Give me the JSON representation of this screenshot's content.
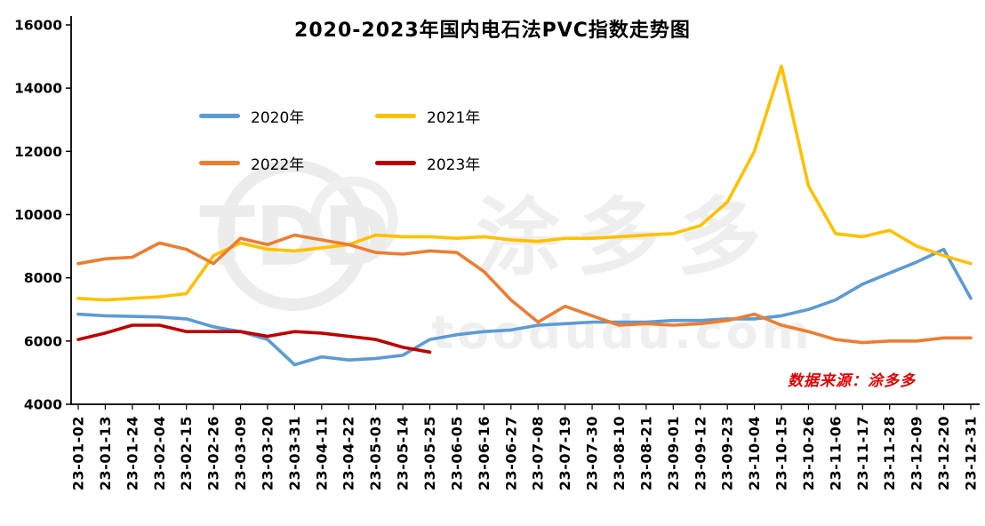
{
  "source_text": "数据来源：涂多多",
  "watermark": {
    "logo_text": "TDD",
    "brand_text": "涂多多",
    "domain_text": "toodudu.com"
  },
  "chart_data": {
    "type": "line",
    "title": "2020-2023年国内电石法PVC指数走势图",
    "xlabel": "",
    "ylabel": "",
    "ylim": [
      4000,
      16000
    ],
    "yticks": [
      4000,
      6000,
      8000,
      10000,
      12000,
      14000,
      16000
    ],
    "grid": false,
    "legend_position": "top-left-inside",
    "categories": [
      "23-01-02",
      "23-01-13",
      "23-01-24",
      "23-02-04",
      "23-02-15",
      "23-02-26",
      "23-03-09",
      "23-03-20",
      "23-03-31",
      "23-04-11",
      "23-04-22",
      "23-05-03",
      "23-05-14",
      "23-05-25",
      "23-06-05",
      "23-06-16",
      "23-06-27",
      "23-07-08",
      "23-07-19",
      "23-07-30",
      "23-08-10",
      "23-08-21",
      "23-09-01",
      "23-09-12",
      "23-09-23",
      "23-10-04",
      "23-10-15",
      "23-10-26",
      "23-11-06",
      "23-11-17",
      "23-11-28",
      "23-12-09",
      "23-12-20",
      "23-12-31"
    ],
    "series": [
      {
        "name": "2020年",
        "color": "#5B9BD5",
        "values": [
          6850,
          6800,
          6780,
          6760,
          6700,
          6450,
          6300,
          6050,
          5250,
          5500,
          5400,
          5450,
          5550,
          6050,
          6200,
          6300,
          6350,
          6500,
          6550,
          6600,
          6600,
          6600,
          6650,
          6650,
          6700,
          6700,
          6800,
          7000,
          7300,
          7800,
          8150,
          8500,
          8900,
          7350
        ]
      },
      {
        "name": "2021年",
        "color": "#FFC000",
        "values": [
          7350,
          7300,
          7350,
          7400,
          7500,
          8700,
          9100,
          8900,
          8850,
          8950,
          9050,
          9350,
          9300,
          9300,
          9250,
          9300,
          9200,
          9150,
          9250,
          9250,
          9300,
          9350,
          9400,
          9650,
          10400,
          12000,
          14700,
          10900,
          9400,
          9300,
          9500,
          9000,
          8700,
          8450
        ]
      },
      {
        "name": "2022年",
        "color": "#ED7D31",
        "values": [
          8450,
          8600,
          8650,
          9100,
          8900,
          8450,
          9250,
          9050,
          9350,
          9200,
          9050,
          8800,
          8750,
          8850,
          8800,
          8200,
          7300,
          6600,
          7100,
          6800,
          6500,
          6550,
          6500,
          6550,
          6650,
          6850,
          6500,
          6300,
          6050,
          5950,
          6000,
          6000,
          6100,
          6100
        ]
      },
      {
        "name": "2023年",
        "color": "#C00000",
        "values": [
          6050,
          6250,
          6500,
          6500,
          6300,
          6300,
          6300,
          6150,
          6300,
          6250,
          6150,
          6050,
          5800,
          5650,
          null,
          null,
          null,
          null,
          null,
          null,
          null,
          null,
          null,
          null,
          null,
          null,
          null,
          null,
          null,
          null,
          null,
          null,
          null,
          null
        ]
      }
    ]
  }
}
